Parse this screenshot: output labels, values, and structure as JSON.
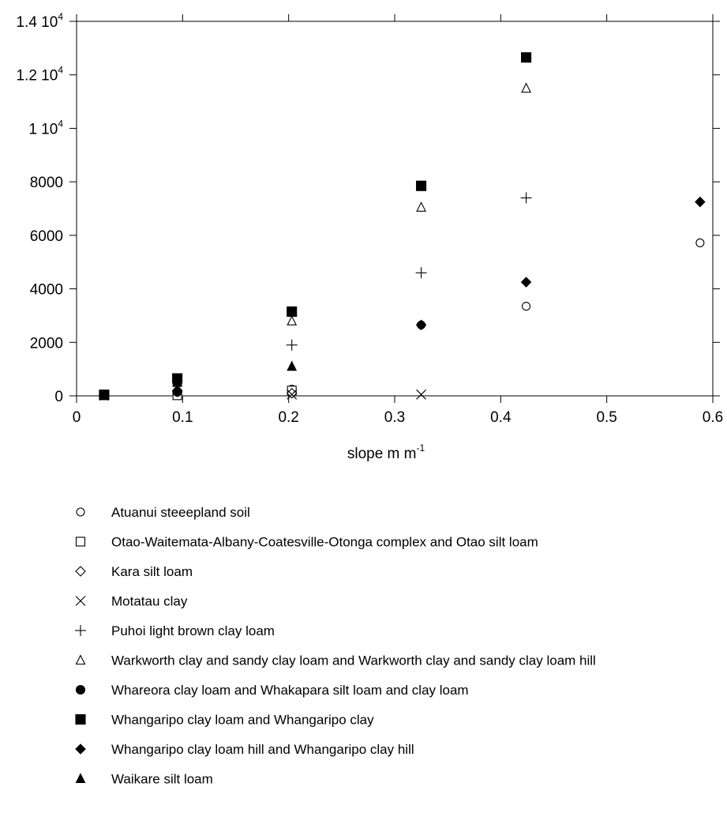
{
  "chart_data": {
    "type": "scatter",
    "xlabel": "slope m m",
    "xlabel_sup": "-1",
    "ylabel": "",
    "xlim": [
      0,
      0.6
    ],
    "ylim": [
      0,
      14000
    ],
    "x_ticks": [
      {
        "value": 0,
        "label": "0"
      },
      {
        "value": 0.1,
        "label": "0.1"
      },
      {
        "value": 0.2,
        "label": "0.2"
      },
      {
        "value": 0.3,
        "label": "0.3"
      },
      {
        "value": 0.4,
        "label": "0.4"
      },
      {
        "value": 0.5,
        "label": "0.5"
      },
      {
        "value": 0.6,
        "label": "0.6"
      }
    ],
    "y_ticks": [
      {
        "value": 0,
        "label": "0",
        "sup": ""
      },
      {
        "value": 2000,
        "label": "2000",
        "sup": ""
      },
      {
        "value": 4000,
        "label": "4000",
        "sup": ""
      },
      {
        "value": 6000,
        "label": "6000",
        "sup": ""
      },
      {
        "value": 8000,
        "label": "8000",
        "sup": ""
      },
      {
        "value": 10000,
        "label": "1 10",
        "sup": "4"
      },
      {
        "value": 12000,
        "label": "1.2 10",
        "sup": "4"
      },
      {
        "value": 14000,
        "label": "1.4 10",
        "sup": "4"
      }
    ],
    "grid": false,
    "legend_position": "bottom",
    "series": [
      {
        "name": "Atuanui steeepland soil",
        "marker": "circle-open",
        "x": [
          0.026,
          0.095,
          0.203,
          0.325,
          0.424,
          0.588
        ],
        "y": [
          30,
          150,
          250,
          2650,
          3350,
          5720
        ]
      },
      {
        "name": "Otao-Waitemata-Albany-Coatesville-Otonga complex and Otao silt loam",
        "marker": "square-open",
        "x": [
          0.026,
          0.095,
          0.203
        ],
        "y": [
          20,
          20,
          200
        ]
      },
      {
        "name": "Kara silt loam",
        "marker": "diamond-open",
        "x": [
          0.026,
          0.095,
          0.203
        ],
        "y": [
          40,
          150,
          100
        ]
      },
      {
        "name": "Motatau clay",
        "marker": "x",
        "x": [
          0.026,
          0.203,
          0.325
        ],
        "y": [
          10,
          50,
          50
        ]
      },
      {
        "name": "Puhoi light brown clay loam",
        "marker": "plus",
        "x": [
          0.203,
          0.325,
          0.424
        ],
        "y": [
          1900,
          4600,
          7400
        ]
      },
      {
        "name": "Warkworth clay and sandy clay loam and Warkworth clay and sandy clay loam hill",
        "marker": "triangle-open",
        "x": [
          0.026,
          0.095,
          0.203,
          0.325,
          0.424
        ],
        "y": [
          20,
          560,
          2800,
          7050,
          11500
        ]
      },
      {
        "name": "Whareora clay loam and Whakapara silt loam and clay loam",
        "marker": "circle-filled",
        "x": [
          0.026,
          0.095
        ],
        "y": [
          50,
          150
        ]
      },
      {
        "name": "Whangaripo clay loam and Whangaripo clay",
        "marker": "square-filled",
        "x": [
          0.026,
          0.095,
          0.203,
          0.325,
          0.424
        ],
        "y": [
          40,
          650,
          3150,
          7850,
          12650
        ]
      },
      {
        "name": "Whangaripo clay loam hill and Whangaripo clay hill",
        "marker": "diamond-filled",
        "x": [
          0.026,
          0.095,
          0.325,
          0.424,
          0.588
        ],
        "y": [
          40,
          200,
          2650,
          4250,
          7250
        ]
      },
      {
        "name": "Waikare silt loam",
        "marker": "triangle-filled",
        "x": [
          0.026,
          0.095,
          0.203
        ],
        "y": [
          30,
          500,
          1100
        ]
      }
    ]
  }
}
